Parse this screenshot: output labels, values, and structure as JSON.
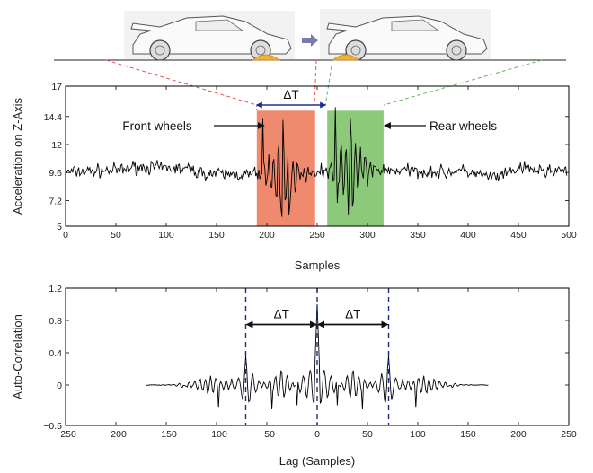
{
  "chart_data": [
    {
      "type": "line",
      "xlabel": "Samples",
      "ylabel": "Acceleration on Z-Axis",
      "xlim": [
        0,
        500
      ],
      "ylim": [
        5,
        17
      ],
      "xticks": [
        "0",
        "50",
        "100",
        "150",
        "200",
        "250",
        "300",
        "350",
        "400",
        "450",
        "500"
      ],
      "yticks": [
        "5",
        "7.2",
        "9.6",
        "12",
        "14.4",
        "17"
      ],
      "highlights": [
        {
          "label": "Front wheels",
          "x_range": [
            190,
            248
          ],
          "color": "#f08a6e"
        },
        {
          "label": "Rear wheels",
          "x_range": [
            260,
            316
          ],
          "color": "#8cc97a"
        }
      ],
      "delta_label": "ΔT",
      "series": [
        {
          "baseline": 9.6,
          "x_range": [
            0,
            498
          ],
          "bursts": [
            {
              "center": 215,
              "width": 30
            },
            {
              "center": 282,
              "width": 30
            }
          ]
        }
      ]
    },
    {
      "type": "line",
      "xlabel": "Lag (Samples)",
      "ylabel": "Auto-Correlation",
      "xlim": [
        -250,
        250
      ],
      "ylim": [
        -0.5,
        1.2
      ],
      "xticks": [
        "−250",
        "−200",
        "−150",
        "−100",
        "−50",
        "0",
        "50",
        "100",
        "150",
        "200",
        "250"
      ],
      "yticks": [
        "−0.5",
        "0",
        "0.4",
        "0.8",
        "1.2"
      ],
      "peaks": [
        {
          "x": -71,
          "y": 0.36
        },
        {
          "x": 0,
          "y": 1.0
        },
        {
          "x": 71,
          "y": 0.36
        }
      ],
      "delta_labels": [
        "ΔT",
        "ΔT"
      ],
      "series": [
        {
          "x_range": [
            -170,
            170
          ]
        }
      ]
    }
  ],
  "colors": {
    "front_highlight": "#f08a6e",
    "rear_highlight": "#8cc97a",
    "red_dash": "#e05a5a",
    "green_dash": "#5cb85c",
    "navy": "#1a2a8a",
    "bump": "#f2b134",
    "arrow": "#7a7ab0"
  },
  "icons": [
    "car-sketch-icon",
    "arrow-right-icon",
    "road-bump-icon"
  ]
}
